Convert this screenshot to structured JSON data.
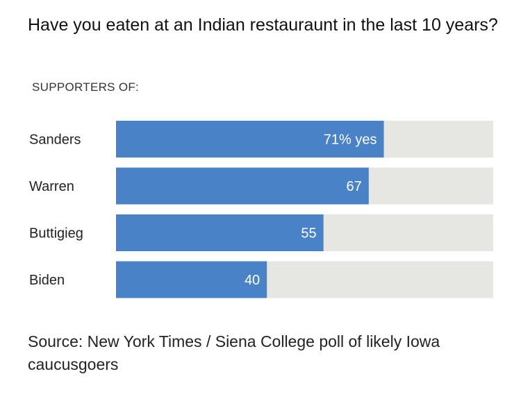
{
  "title": "Have you eaten at an Indian restauraunt in the last 10 years?",
  "section_label": "SUPPORTERS OF:",
  "source": "Source: New York Times / Siena College poll of likely Iowa caucusgoers",
  "colors": {
    "bar": "#4a82c7",
    "track": "#e6e6e3"
  },
  "chart_data": {
    "type": "bar",
    "orientation": "horizontal",
    "title": "Have you eaten at an Indian restauraunt in the last 10 years?",
    "categories": [
      "Sanders",
      "Warren",
      "Buttigieg",
      "Biden"
    ],
    "values": [
      71,
      67,
      55,
      40
    ],
    "value_labels": [
      "71% yes",
      "67",
      "55",
      "40"
    ],
    "xlim": [
      0,
      100
    ],
    "unit": "%",
    "grid": false
  }
}
